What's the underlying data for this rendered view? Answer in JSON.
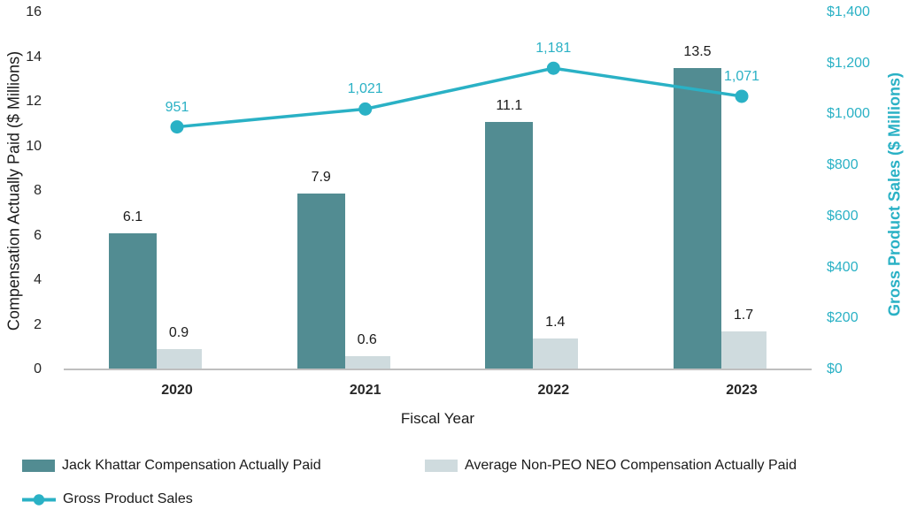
{
  "chart_data": {
    "type": "bar+line combo",
    "categories": [
      "2020",
      "2021",
      "2022",
      "2023"
    ],
    "series": [
      {
        "name": "Jack Khattar Compensation Actually Paid",
        "type": "bar",
        "axis": "left",
        "color": "#528c92",
        "values": [
          6.1,
          7.9,
          11.1,
          13.5
        ],
        "labels": [
          "6.1",
          "7.9",
          "11.1",
          "13.5"
        ]
      },
      {
        "name": "Average Non-PEO NEO Compensation Actually Paid",
        "type": "bar",
        "axis": "left",
        "color": "#cfdbde",
        "values": [
          0.9,
          0.6,
          1.4,
          1.7
        ],
        "labels": [
          "0.9",
          "0.6",
          "1.4",
          "1.7"
        ]
      },
      {
        "name": "Gross Product Sales",
        "type": "line",
        "axis": "right",
        "color": "#2ab1c5",
        "values": [
          951,
          1021,
          1181,
          1071
        ],
        "labels": [
          "951",
          "1,021",
          "1,181",
          "1,071"
        ]
      }
    ],
    "title": "",
    "xlabel": "Fiscal Year",
    "left_axis": {
      "label": "Compensation Actually Paid ($ Millions)",
      "min": 0,
      "max": 16,
      "tick_values": [
        0,
        2,
        4,
        6,
        8,
        10,
        12,
        14,
        16
      ],
      "tick_labels": [
        "0",
        "2",
        "4",
        "6",
        "8",
        "10",
        "12",
        "14",
        "16"
      ]
    },
    "right_axis": {
      "label": "Gross Product Sales ($ Millions)",
      "min": 0,
      "max": 1400,
      "tick_values": [
        0,
        200,
        400,
        600,
        800,
        1000,
        1200,
        1400
      ],
      "tick_labels": [
        "$0",
        "$200",
        "$400",
        "$600",
        "$800",
        "$1,000",
        "$1,200",
        "$1,400"
      ]
    },
    "grid": false,
    "legend_position": "bottom-left",
    "legend": [
      "Jack Khattar Compensation Actually Paid",
      "Average Non-PEO NEO Compensation Actually Paid",
      "Gross Product Sales"
    ]
  },
  "colors": {
    "bar_dark_teal": "#528c92",
    "bar_light_gray": "#cfdbde",
    "line_teal": "#2ab1c5",
    "axis_line_gray": "#bfbfbf",
    "text_dark": "#262626"
  }
}
